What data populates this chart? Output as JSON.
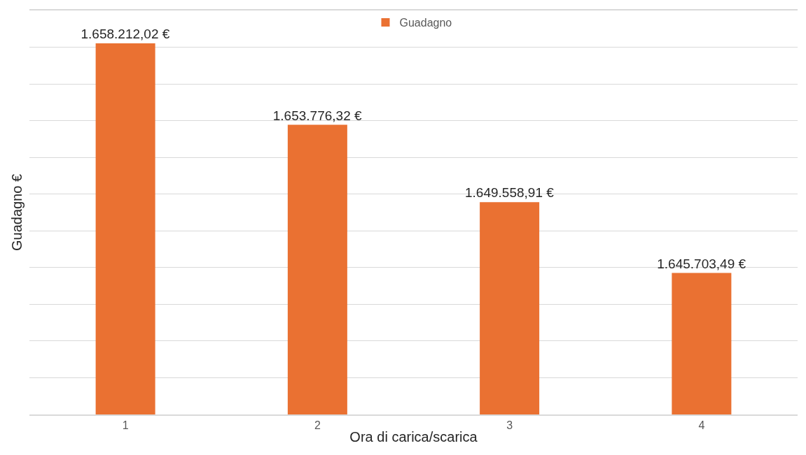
{
  "chart_data": {
    "type": "bar",
    "xlabel": "Ora di carica/scarica",
    "ylabel": "Guadagno €",
    "categories": [
      "1",
      "2",
      "3",
      "4"
    ],
    "series": [
      {
        "name": "Guadagno",
        "color": "#ea7132",
        "values": [
          1658212.02,
          1653776.32,
          1649558.91,
          1645703.49
        ],
        "value_labels": [
          "1.658.212,02 €",
          "1.653.776,32 €",
          "1.649.558,91 €",
          "1.645.703,49 €"
        ]
      }
    ],
    "ylim": [
      1638000,
      1660000
    ],
    "yticks": [
      {
        "value": 1638000,
        "label": null
      },
      {
        "value": 1640000,
        "label": null
      },
      {
        "value": 1642000,
        "label": null
      },
      {
        "value": 1644000,
        "label": null
      },
      {
        "value": 1646000,
        "label": null
      },
      {
        "value": 1648000,
        "label": null
      },
      {
        "value": 1650000,
        "label": null
      },
      {
        "value": 1652000,
        "label": null
      },
      {
        "value": 1654000,
        "label": null
      },
      {
        "value": 1656000,
        "label": null
      },
      {
        "value": 1658000,
        "label": null
      },
      {
        "value": 1660000,
        "label": null
      }
    ],
    "grid": "y",
    "legend": "top",
    "tick_labels": "x"
  }
}
